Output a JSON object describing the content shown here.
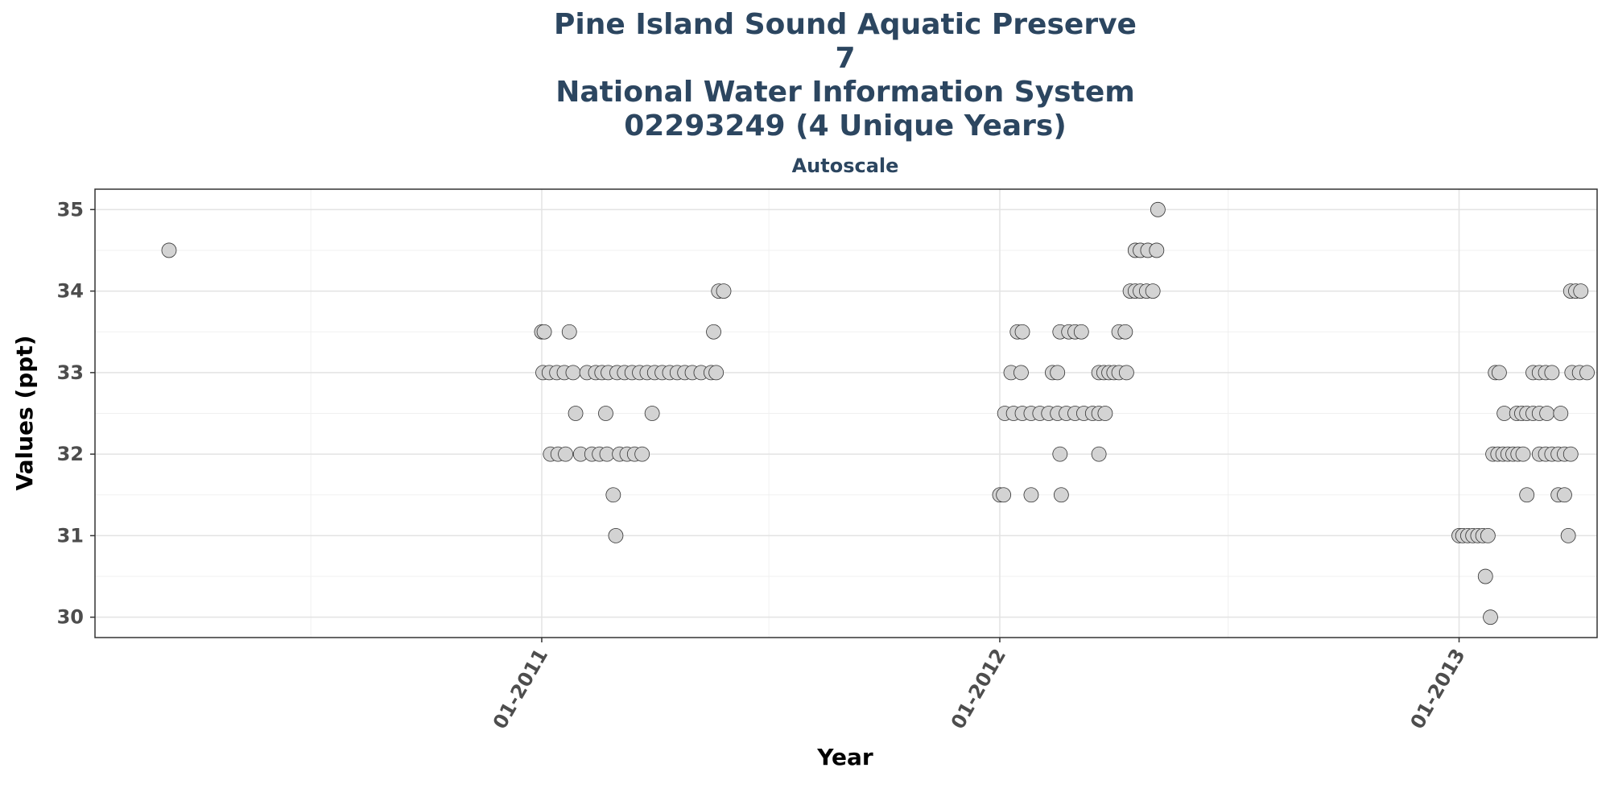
{
  "chart_data": {
    "type": "scatter",
    "title_lines": [
      "Pine Island Sound Aquatic Preserve",
      "7",
      "National Water Information System",
      "02293249 (4 Unique Years)"
    ],
    "subtitle": "Autoscale",
    "xlabel": "Year",
    "ylabel": "Values (ppt)",
    "x_tick_labels": [
      "01-2011",
      "01-2012",
      "01-2013"
    ],
    "y_tick_labels": [
      "30",
      "31",
      "32",
      "33",
      "34",
      "35"
    ],
    "ylim": [
      29.75,
      35.25
    ],
    "xlim": [
      "2010-01-10",
      "2013-04-21"
    ],
    "grid": true,
    "legend": "none",
    "point_fill": "#d3d3d3",
    "point_stroke": "#333333",
    "points": [
      {
        "x": "2010-03-10",
        "y": 34.5
      },
      {
        "x": "2011-01-01",
        "y": 33.5
      },
      {
        "x": "2011-01-03",
        "y": 33.5
      },
      {
        "x": "2011-01-23",
        "y": 33.5
      },
      {
        "x": "2011-05-18",
        "y": 33.5
      },
      {
        "x": "2011-05-22",
        "y": 34.0
      },
      {
        "x": "2011-05-26",
        "y": 34.0
      },
      {
        "x": "2011-01-02",
        "y": 33.0
      },
      {
        "x": "2011-01-07",
        "y": 33.0
      },
      {
        "x": "2011-01-13",
        "y": 33.0
      },
      {
        "x": "2011-01-19",
        "y": 33.0
      },
      {
        "x": "2011-01-26",
        "y": 33.0
      },
      {
        "x": "2011-02-06",
        "y": 33.0
      },
      {
        "x": "2011-02-13",
        "y": 33.0
      },
      {
        "x": "2011-02-18",
        "y": 33.0
      },
      {
        "x": "2011-02-23",
        "y": 33.0
      },
      {
        "x": "2011-03-02",
        "y": 33.0
      },
      {
        "x": "2011-03-08",
        "y": 33.0
      },
      {
        "x": "2011-03-14",
        "y": 33.0
      },
      {
        "x": "2011-03-20",
        "y": 33.0
      },
      {
        "x": "2011-03-26",
        "y": 33.0
      },
      {
        "x": "2011-04-01",
        "y": 33.0
      },
      {
        "x": "2011-04-07",
        "y": 33.0
      },
      {
        "x": "2011-04-13",
        "y": 33.0
      },
      {
        "x": "2011-04-19",
        "y": 33.0
      },
      {
        "x": "2011-04-25",
        "y": 33.0
      },
      {
        "x": "2011-05-01",
        "y": 33.0
      },
      {
        "x": "2011-05-08",
        "y": 33.0
      },
      {
        "x": "2011-05-16",
        "y": 33.0
      },
      {
        "x": "2011-05-20",
        "y": 33.0
      },
      {
        "x": "2011-01-28",
        "y": 32.5
      },
      {
        "x": "2011-02-21",
        "y": 32.5
      },
      {
        "x": "2011-03-30",
        "y": 32.5
      },
      {
        "x": "2011-01-08",
        "y": 32.0
      },
      {
        "x": "2011-01-14",
        "y": 32.0
      },
      {
        "x": "2011-01-20",
        "y": 32.0
      },
      {
        "x": "2011-02-01",
        "y": 32.0
      },
      {
        "x": "2011-02-10",
        "y": 32.0
      },
      {
        "x": "2011-02-16",
        "y": 32.0
      },
      {
        "x": "2011-02-22",
        "y": 32.0
      },
      {
        "x": "2011-03-04",
        "y": 32.0
      },
      {
        "x": "2011-03-10",
        "y": 32.0
      },
      {
        "x": "2011-03-16",
        "y": 32.0
      },
      {
        "x": "2011-03-22",
        "y": 32.0
      },
      {
        "x": "2011-02-27",
        "y": 31.5
      },
      {
        "x": "2011-03-01",
        "y": 31.0
      },
      {
        "x": "2012-01-15",
        "y": 33.5
      },
      {
        "x": "2012-01-19",
        "y": 33.5
      },
      {
        "x": "2012-02-18",
        "y": 33.5
      },
      {
        "x": "2012-02-25",
        "y": 33.5
      },
      {
        "x": "2012-03-01",
        "y": 33.5
      },
      {
        "x": "2012-03-06",
        "y": 33.5
      },
      {
        "x": "2012-04-05",
        "y": 33.5
      },
      {
        "x": "2012-04-10",
        "y": 33.5
      },
      {
        "x": "2012-01-10",
        "y": 33.0
      },
      {
        "x": "2012-01-18",
        "y": 33.0
      },
      {
        "x": "2012-02-12",
        "y": 33.0
      },
      {
        "x": "2012-02-16",
        "y": 33.0
      },
      {
        "x": "2012-03-20",
        "y": 33.0
      },
      {
        "x": "2012-03-24",
        "y": 33.0
      },
      {
        "x": "2012-03-28",
        "y": 33.0
      },
      {
        "x": "2012-04-01",
        "y": 33.0
      },
      {
        "x": "2012-04-05",
        "y": 33.0
      },
      {
        "x": "2012-04-11",
        "y": 33.0
      },
      {
        "x": "2012-01-05",
        "y": 32.5
      },
      {
        "x": "2012-01-12",
        "y": 32.5
      },
      {
        "x": "2012-01-19",
        "y": 32.5
      },
      {
        "x": "2012-01-26",
        "y": 32.5
      },
      {
        "x": "2012-02-02",
        "y": 32.5
      },
      {
        "x": "2012-02-09",
        "y": 32.5
      },
      {
        "x": "2012-02-16",
        "y": 32.5
      },
      {
        "x": "2012-02-23",
        "y": 32.5
      },
      {
        "x": "2012-03-01",
        "y": 32.5
      },
      {
        "x": "2012-03-08",
        "y": 32.5
      },
      {
        "x": "2012-03-15",
        "y": 32.5
      },
      {
        "x": "2012-03-20",
        "y": 32.5
      },
      {
        "x": "2012-03-25",
        "y": 32.5
      },
      {
        "x": "2012-02-18",
        "y": 32.0
      },
      {
        "x": "2012-03-20",
        "y": 32.0
      },
      {
        "x": "2012-01-01",
        "y": 31.5
      },
      {
        "x": "2012-01-04",
        "y": 31.5
      },
      {
        "x": "2012-01-26",
        "y": 31.5
      },
      {
        "x": "2012-02-19",
        "y": 31.5
      },
      {
        "x": "2012-04-14",
        "y": 34.0
      },
      {
        "x": "2012-04-18",
        "y": 34.0
      },
      {
        "x": "2012-04-22",
        "y": 34.0
      },
      {
        "x": "2012-04-27",
        "y": 34.0
      },
      {
        "x": "2012-05-02",
        "y": 34.0
      },
      {
        "x": "2012-04-18",
        "y": 34.5
      },
      {
        "x": "2012-04-22",
        "y": 34.5
      },
      {
        "x": "2012-04-28",
        "y": 34.5
      },
      {
        "x": "2012-05-05",
        "y": 34.5
      },
      {
        "x": "2012-05-06",
        "y": 35.0
      },
      {
        "x": "2013-01-01",
        "y": 31.0
      },
      {
        "x": "2013-01-04",
        "y": 31.0
      },
      {
        "x": "2013-01-08",
        "y": 31.0
      },
      {
        "x": "2013-01-12",
        "y": 31.0
      },
      {
        "x": "2013-01-16",
        "y": 31.0
      },
      {
        "x": "2013-01-20",
        "y": 31.0
      },
      {
        "x": "2013-01-24",
        "y": 31.0
      },
      {
        "x": "2013-01-22",
        "y": 30.5
      },
      {
        "x": "2013-01-26",
        "y": 30.0
      },
      {
        "x": "2013-01-30",
        "y": 33.0
      },
      {
        "x": "2013-02-02",
        "y": 33.0
      },
      {
        "x": "2013-03-01",
        "y": 33.0
      },
      {
        "x": "2013-03-06",
        "y": 33.0
      },
      {
        "x": "2013-03-11",
        "y": 33.0
      },
      {
        "x": "2013-03-16",
        "y": 33.0
      },
      {
        "x": "2013-04-01",
        "y": 33.0
      },
      {
        "x": "2013-04-07",
        "y": 33.0
      },
      {
        "x": "2013-04-13",
        "y": 33.0
      },
      {
        "x": "2013-02-06",
        "y": 32.5
      },
      {
        "x": "2013-02-16",
        "y": 32.5
      },
      {
        "x": "2013-02-20",
        "y": 32.5
      },
      {
        "x": "2013-02-24",
        "y": 32.5
      },
      {
        "x": "2013-03-01",
        "y": 32.5
      },
      {
        "x": "2013-03-06",
        "y": 32.5
      },
      {
        "x": "2013-03-12",
        "y": 32.5
      },
      {
        "x": "2013-03-23",
        "y": 32.5
      },
      {
        "x": "2013-01-28",
        "y": 32.0
      },
      {
        "x": "2013-02-01",
        "y": 32.0
      },
      {
        "x": "2013-02-05",
        "y": 32.0
      },
      {
        "x": "2013-02-09",
        "y": 32.0
      },
      {
        "x": "2013-02-13",
        "y": 32.0
      },
      {
        "x": "2013-02-17",
        "y": 32.0
      },
      {
        "x": "2013-02-21",
        "y": 32.0
      },
      {
        "x": "2013-03-06",
        "y": 32.0
      },
      {
        "x": "2013-03-11",
        "y": 32.0
      },
      {
        "x": "2013-03-16",
        "y": 32.0
      },
      {
        "x": "2013-03-21",
        "y": 32.0
      },
      {
        "x": "2013-03-26",
        "y": 32.0
      },
      {
        "x": "2013-03-31",
        "y": 32.0
      },
      {
        "x": "2013-02-24",
        "y": 31.5
      },
      {
        "x": "2013-03-21",
        "y": 31.5
      },
      {
        "x": "2013-03-26",
        "y": 31.5
      },
      {
        "x": "2013-03-29",
        "y": 31.0
      },
      {
        "x": "2013-03-31",
        "y": 34.0
      },
      {
        "x": "2013-04-04",
        "y": 34.0
      },
      {
        "x": "2013-04-08",
        "y": 34.0
      }
    ]
  }
}
